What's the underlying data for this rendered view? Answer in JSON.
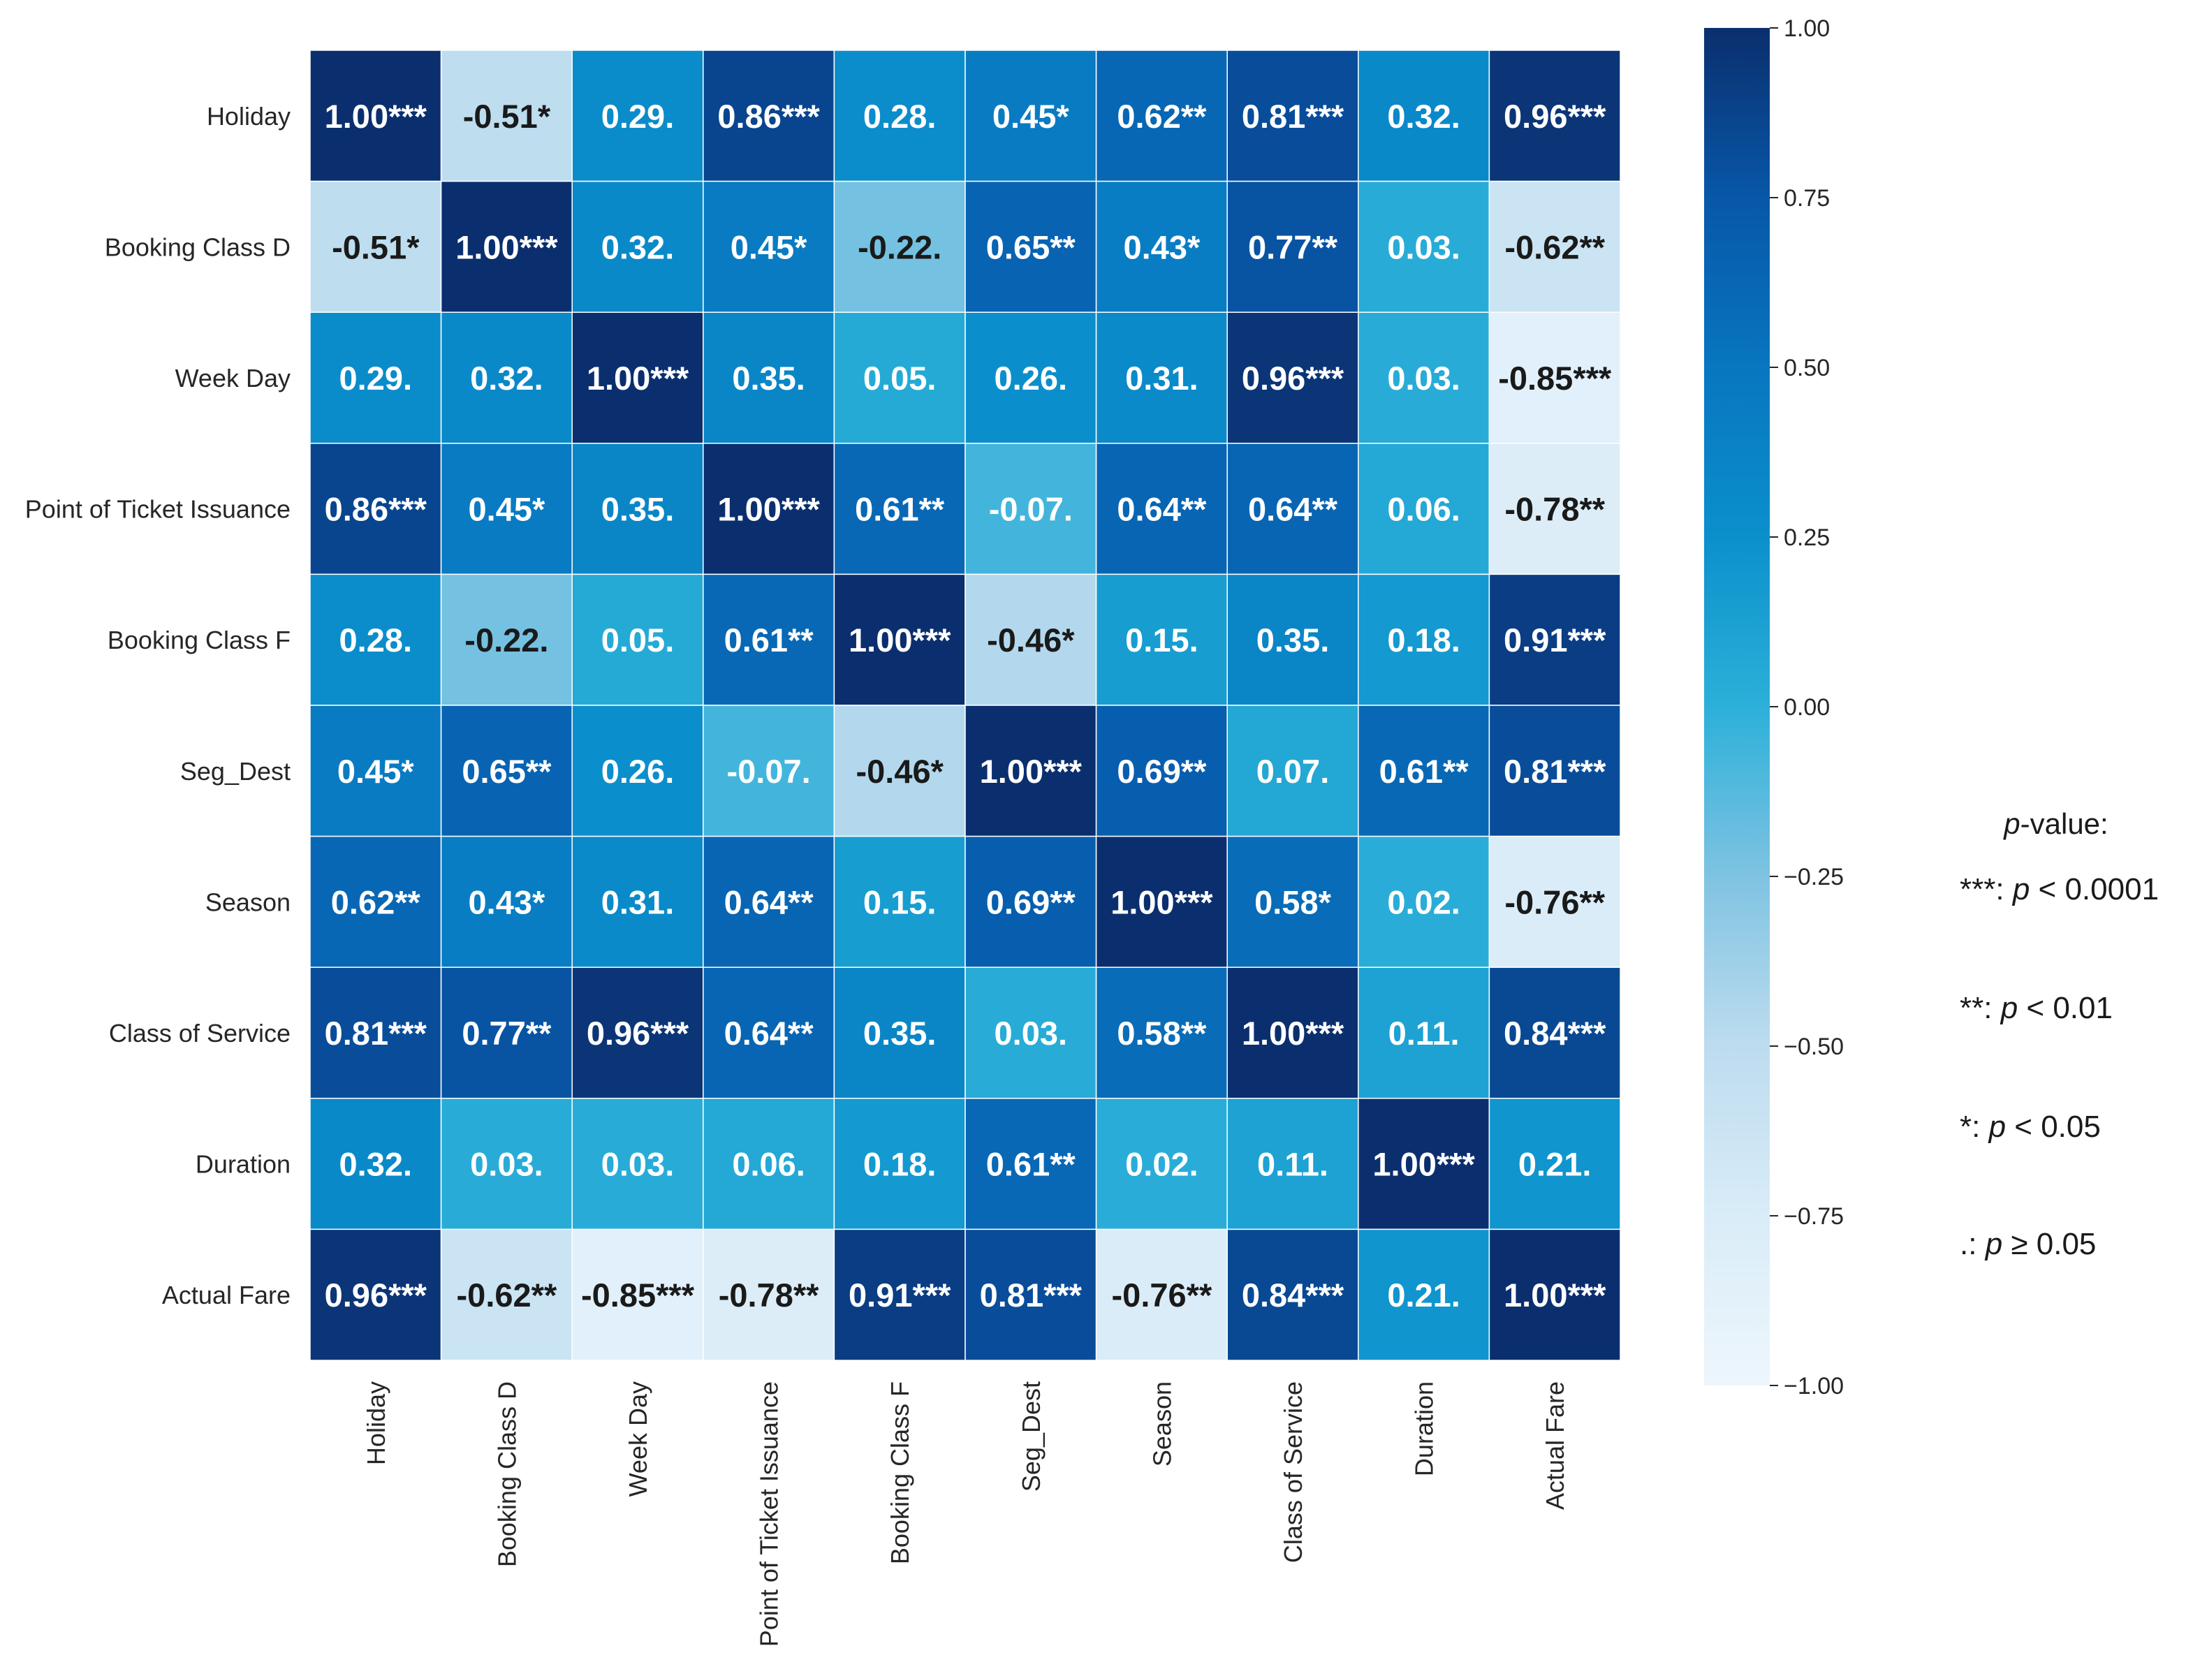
{
  "chart_data": {
    "type": "heatmap",
    "title": "",
    "xlabel": "",
    "ylabel": "",
    "labels": [
      "Holiday",
      "Booking Class D",
      "Week Day",
      "Point of Ticket Issuance",
      "Booking Class F",
      "Seg_Dest",
      "Season",
      "Class of Service",
      "Duration",
      "Actual Fare"
    ],
    "values": [
      [
        1.0,
        -0.51,
        0.29,
        0.86,
        0.28,
        0.45,
        0.62,
        0.81,
        0.32,
        0.96
      ],
      [
        -0.51,
        1.0,
        0.32,
        0.45,
        -0.22,
        0.65,
        0.43,
        0.77,
        0.03,
        -0.62
      ],
      [
        0.29,
        0.32,
        1.0,
        0.35,
        0.05,
        0.26,
        0.31,
        0.96,
        0.03,
        -0.85
      ],
      [
        0.86,
        0.45,
        0.35,
        1.0,
        0.61,
        -0.07,
        0.64,
        0.64,
        0.06,
        -0.78
      ],
      [
        0.28,
        -0.22,
        0.05,
        0.61,
        1.0,
        -0.46,
        0.15,
        0.35,
        0.18,
        0.91
      ],
      [
        0.45,
        0.65,
        0.26,
        -0.07,
        -0.46,
        1.0,
        0.69,
        0.07,
        0.61,
        0.81
      ],
      [
        0.62,
        0.43,
        0.31,
        0.64,
        0.15,
        0.69,
        1.0,
        0.58,
        0.02,
        -0.76
      ],
      [
        0.81,
        0.77,
        0.96,
        0.64,
        0.35,
        0.03,
        0.58,
        1.0,
        0.11,
        0.84
      ],
      [
        0.32,
        0.03,
        0.03,
        0.06,
        0.18,
        0.61,
        0.02,
        0.11,
        1.0,
        0.21
      ],
      [
        0.96,
        -0.62,
        -0.85,
        -0.78,
        0.91,
        0.81,
        -0.76,
        0.84,
        0.21,
        1.0
      ]
    ],
    "annotations": [
      [
        "1.00***",
        "-0.51*",
        "0.29.",
        "0.86***",
        "0.28.",
        "0.45*",
        "0.62**",
        "0.81***",
        "0.32.",
        "0.96***"
      ],
      [
        "-0.51*",
        "1.00***",
        "0.32.",
        "0.45*",
        "-0.22.",
        "0.65**",
        "0.43*",
        "0.77**",
        "0.03.",
        "-0.62**"
      ],
      [
        "0.29.",
        "0.32.",
        "1.00***",
        "0.35.",
        "0.05.",
        "0.26.",
        "0.31.",
        "0.96***",
        "0.03.",
        "-0.85***"
      ],
      [
        "0.86***",
        "0.45*",
        "0.35.",
        "1.00***",
        "0.61**",
        "-0.07.",
        "0.64**",
        "0.64**",
        "0.06.",
        "-0.78**"
      ],
      [
        "0.28.",
        "-0.22.",
        "0.05.",
        "0.61**",
        "1.00***",
        "-0.46*",
        "0.15.",
        "0.35.",
        "0.18.",
        "0.91***"
      ],
      [
        "0.45*",
        "0.65**",
        "0.26.",
        "-0.07.",
        "-0.46*",
        "1.00***",
        "0.69**",
        "0.07.",
        "0.61**",
        "0.81***"
      ],
      [
        "0.62**",
        "0.43*",
        "0.31.",
        "0.64**",
        "0.15.",
        "0.69**",
        "1.00***",
        "0.58*",
        "0.02.",
        "-0.76**"
      ],
      [
        "0.81***",
        "0.77**",
        "0.96***",
        "0.64**",
        "0.35.",
        "0.03.",
        "0.58**",
        "1.00***",
        "0.11.",
        "0.84***"
      ],
      [
        "0.32.",
        "0.03.",
        "0.03.",
        "0.06.",
        "0.18.",
        "0.61**",
        "0.02.",
        "0.11.",
        "1.00***",
        "0.21."
      ],
      [
        "0.96***",
        "-0.62**",
        "-0.85***",
        "-0.78**",
        "0.91***",
        "0.81***",
        "-0.76**",
        "0.84***",
        "0.21.",
        "1.00***"
      ]
    ],
    "colorbar": {
      "range": [
        -1.0,
        1.0
      ],
      "ticks": [
        1.0,
        0.75,
        0.5,
        0.25,
        0.0,
        -0.25,
        -0.5,
        -0.75,
        -1.0
      ],
      "tick_labels": [
        "1.00",
        "0.75",
        "0.50",
        "0.25",
        "0.00",
        "−0.25",
        "−0.50",
        "−0.75",
        "−1.00"
      ],
      "colormap": "Blues-like",
      "low_color": "#eef6fc",
      "mid_color": "#2ab1db",
      "high_color": "#0b2f6e"
    },
    "legend": {
      "title_italic": "p",
      "title_rest": "-value:",
      "entries": [
        {
          "stars": "***: ",
          "p": "p",
          "rel": " < 0.0001"
        },
        {
          "stars": "**: ",
          "p": "p",
          "rel": " < 0.01"
        },
        {
          "stars": "*: ",
          "p": "p",
          "rel": " < 0.05"
        },
        {
          "stars": ".: ",
          "p": "p",
          "rel": " ≥ 0.05"
        }
      ]
    },
    "grid": true,
    "legend_placement": "right"
  }
}
